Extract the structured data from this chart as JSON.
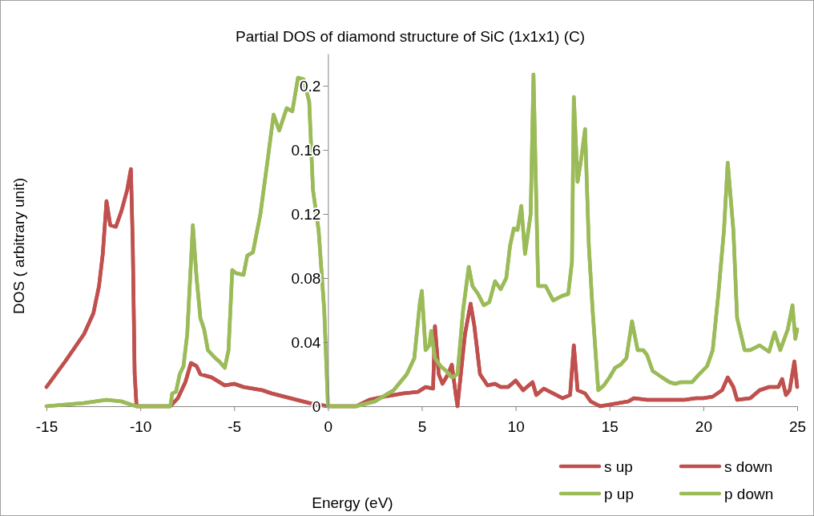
{
  "chart_data": {
    "type": "line",
    "title": "Partial DOS of diamond structure of SiC (1x1x1) (C)",
    "xlabel": "Energy (eV)",
    "ylabel": "DOS ( arbitrary unit)",
    "xlim": [
      -15,
      25
    ],
    "xticks": [
      -15,
      -10,
      -5,
      0,
      5,
      10,
      15,
      20,
      25
    ],
    "ylim": [
      0,
      0.22
    ],
    "yticks": [
      0,
      0.04,
      0.08,
      0.12,
      0.16,
      0.2
    ],
    "grid": false,
    "legend": "bottom right",
    "marker": "none",
    "line_style": "solid",
    "series": [
      {
        "name": "s up",
        "color": "#c0504d",
        "x": [
          -15,
          -14,
          -13,
          -12.5,
          -12.2,
          -12,
          -11.8,
          -11.6,
          -11.3,
          -11,
          -10.7,
          -10.5,
          -10.4,
          -10.3,
          -10.2,
          -8.4,
          -8,
          -7.6,
          -7.3,
          -7,
          -6.8,
          -6.2,
          -5.5,
          -5,
          -4.5,
          -4,
          -3.5,
          -3,
          -2,
          -1,
          0,
          1.5,
          2.2,
          3,
          4,
          4.8,
          5.2,
          5.6,
          5.7,
          5.9,
          6.1,
          6.4,
          6.6,
          6.8,
          6.9,
          7.3,
          7.6,
          7.8,
          8.1,
          8.5,
          8.9,
          9.2,
          9.6,
          10,
          10.4,
          10.9,
          11.1,
          11.5,
          12,
          12.5,
          12.9,
          13.1,
          13.3,
          13.7,
          14,
          14.5,
          15,
          16,
          16.3,
          17,
          18,
          19,
          19.6,
          20,
          20.5,
          21,
          21.3,
          21.6,
          21.8,
          22.5,
          23,
          23.5,
          24,
          24.2,
          24.4,
          24.6,
          24.85,
          25
        ],
        "values": [
          0.012,
          0.028,
          0.045,
          0.058,
          0.075,
          0.095,
          0.128,
          0.113,
          0.112,
          0.122,
          0.135,
          0.148,
          0.1,
          0.02,
          0,
          0,
          0.005,
          0.015,
          0.027,
          0.025,
          0.02,
          0.018,
          0.013,
          0.014,
          0.012,
          0.011,
          0.01,
          0.008,
          0.005,
          0.002,
          0,
          0,
          0.004,
          0.006,
          0.008,
          0.009,
          0.012,
          0.011,
          0.05,
          0.02,
          0.014,
          0.02,
          0.026,
          0.008,
          0,
          0.045,
          0.064,
          0.05,
          0.02,
          0.013,
          0.014,
          0.012,
          0.012,
          0.016,
          0.01,
          0.015,
          0.007,
          0.011,
          0.008,
          0.005,
          0.007,
          0.038,
          0.01,
          0.008,
          0.003,
          0,
          0.001,
          0.003,
          0.005,
          0.004,
          0.004,
          0.004,
          0.005,
          0.005,
          0.006,
          0.01,
          0.018,
          0.012,
          0.004,
          0.005,
          0.01,
          0.012,
          0.012,
          0.017,
          0.007,
          0.01,
          0.028,
          0.012
        ]
      },
      {
        "name": "s down",
        "color": "#c0504d",
        "x": [
          -15,
          -14,
          -13,
          -12.5,
          -12.2,
          -12,
          -11.8,
          -11.6,
          -11.3,
          -11,
          -10.7,
          -10.5,
          -10.4,
          -10.3,
          -10.2,
          -8.4,
          -8,
          -7.6,
          -7.3,
          -7,
          -6.8,
          -6.2,
          -5.5,
          -5,
          -4.5,
          -4,
          -3.5,
          -3,
          -2,
          -1,
          0,
          1.5,
          2.2,
          3,
          4,
          4.8,
          5.2,
          5.6,
          5.7,
          5.9,
          6.1,
          6.4,
          6.6,
          6.8,
          6.9,
          7.3,
          7.6,
          7.8,
          8.1,
          8.5,
          8.9,
          9.2,
          9.6,
          10,
          10.4,
          10.9,
          11.1,
          11.5,
          12,
          12.5,
          12.9,
          13.1,
          13.3,
          13.7,
          14,
          14.5,
          15,
          16,
          16.3,
          17,
          18,
          19,
          19.6,
          20,
          20.5,
          21,
          21.3,
          21.6,
          21.8,
          22.5,
          23,
          23.5,
          24,
          24.2,
          24.4,
          24.6,
          24.85,
          25
        ],
        "values": [
          0.012,
          0.028,
          0.045,
          0.058,
          0.075,
          0.095,
          0.128,
          0.113,
          0.112,
          0.122,
          0.135,
          0.148,
          0.1,
          0.02,
          0,
          0,
          0.005,
          0.015,
          0.027,
          0.025,
          0.02,
          0.018,
          0.013,
          0.014,
          0.012,
          0.011,
          0.01,
          0.008,
          0.005,
          0.002,
          0,
          0,
          0.004,
          0.006,
          0.008,
          0.009,
          0.012,
          0.011,
          0.05,
          0.02,
          0.014,
          0.02,
          0.026,
          0.008,
          0,
          0.045,
          0.064,
          0.05,
          0.02,
          0.013,
          0.014,
          0.012,
          0.012,
          0.016,
          0.01,
          0.015,
          0.007,
          0.011,
          0.008,
          0.005,
          0.007,
          0.038,
          0.01,
          0.008,
          0.003,
          0,
          0.001,
          0.003,
          0.005,
          0.004,
          0.004,
          0.004,
          0.005,
          0.005,
          0.006,
          0.01,
          0.018,
          0.012,
          0.004,
          0.005,
          0.01,
          0.012,
          0.012,
          0.017,
          0.007,
          0.01,
          0.028,
          0.012
        ]
      },
      {
        "name": "p up",
        "color": "#9bbb59",
        "x": [
          -15,
          -13,
          -11.8,
          -11,
          -10.5,
          -10.2,
          -8.4,
          -8.3,
          -8.1,
          -7.9,
          -7.7,
          -7.5,
          -7.3,
          -7.2,
          -7,
          -6.8,
          -6.6,
          -6.4,
          -6,
          -5.8,
          -5.5,
          -5.3,
          -5.1,
          -4.9,
          -4.5,
          -4.3,
          -4,
          -3.6,
          -3.2,
          -2.9,
          -2.6,
          -2.2,
          -1.9,
          -1.6,
          -1.3,
          -1,
          -0.8,
          -0.5,
          -0.2,
          0,
          1.5,
          2.5,
          3.5,
          4.2,
          4.6,
          4.9,
          5,
          5.2,
          5.4,
          5.5,
          5.7,
          6,
          6.3,
          6.6,
          6.9,
          7.2,
          7.5,
          7.7,
          8,
          8.3,
          8.6,
          8.9,
          9.2,
          9.5,
          9.7,
          9.9,
          10.1,
          10.3,
          10.5,
          10.8,
          10.95,
          11.2,
          11.6,
          12,
          12.5,
          12.8,
          13,
          13.1,
          13.3,
          13.5,
          13.7,
          13.9,
          14.1,
          14.4,
          14.7,
          15,
          15.3,
          15.6,
          15.9,
          16.2,
          16.5,
          16.8,
          17,
          17.3,
          17.8,
          18.2,
          18.5,
          18.8,
          19.4,
          19.7,
          20.2,
          20.5,
          20.8,
          21.1,
          21.3,
          21.6,
          21.8,
          22.2,
          22.5,
          23,
          23.5,
          23.8,
          24.1,
          24.5,
          24.75,
          24.9,
          25
        ],
        "values": [
          0,
          0.002,
          0.004,
          0.003,
          0.001,
          0,
          0,
          0.008,
          0.009,
          0.02,
          0.025,
          0.045,
          0.09,
          0.113,
          0.08,
          0.055,
          0.048,
          0.035,
          0.03,
          0.028,
          0.024,
          0.035,
          0.085,
          0.083,
          0.082,
          0.094,
          0.096,
          0.12,
          0.155,
          0.182,
          0.172,
          0.186,
          0.184,
          0.205,
          0.204,
          0.19,
          0.135,
          0.11,
          0.06,
          0,
          0,
          0.003,
          0.01,
          0.02,
          0.03,
          0.065,
          0.072,
          0.035,
          0.038,
          0.047,
          0.03,
          0.025,
          0.022,
          0.018,
          0.02,
          0.06,
          0.087,
          0.075,
          0.07,
          0.063,
          0.065,
          0.078,
          0.073,
          0.08,
          0.1,
          0.111,
          0.11,
          0.125,
          0.095,
          0.12,
          0.207,
          0.075,
          0.075,
          0.066,
          0.069,
          0.07,
          0.09,
          0.193,
          0.14,
          0.155,
          0.173,
          0.1,
          0.06,
          0.01,
          0.013,
          0.018,
          0.024,
          0.026,
          0.03,
          0.053,
          0.035,
          0.035,
          0.032,
          0.022,
          0.018,
          0.015,
          0.014,
          0.015,
          0.015,
          0.019,
          0.025,
          0.035,
          0.07,
          0.11,
          0.152,
          0.11,
          0.055,
          0.035,
          0.035,
          0.038,
          0.034,
          0.046,
          0.035,
          0.048,
          0.063,
          0.042,
          0.048
        ]
      },
      {
        "name": "p down",
        "color": "#9bbb59",
        "x": [
          -15,
          -13,
          -11.8,
          -11,
          -10.5,
          -10.2,
          -8.4,
          -8.3,
          -8.1,
          -7.9,
          -7.7,
          -7.5,
          -7.3,
          -7.2,
          -7,
          -6.8,
          -6.6,
          -6.4,
          -6,
          -5.8,
          -5.5,
          -5.3,
          -5.1,
          -4.9,
          -4.5,
          -4.3,
          -4,
          -3.6,
          -3.2,
          -2.9,
          -2.6,
          -2.2,
          -1.9,
          -1.6,
          -1.3,
          -1,
          -0.8,
          -0.5,
          -0.2,
          0,
          1.5,
          2.5,
          3.5,
          4.2,
          4.6,
          4.9,
          5,
          5.2,
          5.4,
          5.5,
          5.7,
          6,
          6.3,
          6.6,
          6.9,
          7.2,
          7.5,
          7.7,
          8,
          8.3,
          8.6,
          8.9,
          9.2,
          9.5,
          9.7,
          9.9,
          10.1,
          10.3,
          10.5,
          10.8,
          10.95,
          11.2,
          11.6,
          12,
          12.5,
          12.8,
          13,
          13.1,
          13.3,
          13.5,
          13.7,
          13.9,
          14.1,
          14.4,
          14.7,
          15,
          15.3,
          15.6,
          15.9,
          16.2,
          16.5,
          16.8,
          17,
          17.3,
          17.8,
          18.2,
          18.5,
          18.8,
          19.4,
          19.7,
          20.2,
          20.5,
          20.8,
          21.1,
          21.3,
          21.6,
          21.8,
          22.2,
          22.5,
          23,
          23.5,
          23.8,
          24.1,
          24.5,
          24.75,
          24.9,
          25
        ],
        "values": [
          0,
          0.002,
          0.004,
          0.003,
          0.001,
          0,
          0,
          0.008,
          0.009,
          0.02,
          0.025,
          0.045,
          0.09,
          0.113,
          0.08,
          0.055,
          0.048,
          0.035,
          0.03,
          0.028,
          0.024,
          0.035,
          0.085,
          0.083,
          0.082,
          0.094,
          0.096,
          0.12,
          0.155,
          0.182,
          0.172,
          0.186,
          0.184,
          0.205,
          0.204,
          0.19,
          0.135,
          0.11,
          0.06,
          0,
          0,
          0.003,
          0.01,
          0.02,
          0.03,
          0.065,
          0.072,
          0.035,
          0.038,
          0.047,
          0.03,
          0.025,
          0.022,
          0.018,
          0.02,
          0.06,
          0.087,
          0.075,
          0.07,
          0.063,
          0.065,
          0.078,
          0.073,
          0.08,
          0.1,
          0.111,
          0.11,
          0.125,
          0.095,
          0.12,
          0.207,
          0.075,
          0.075,
          0.066,
          0.069,
          0.07,
          0.09,
          0.193,
          0.14,
          0.155,
          0.173,
          0.1,
          0.06,
          0.01,
          0.013,
          0.018,
          0.024,
          0.026,
          0.03,
          0.053,
          0.035,
          0.035,
          0.032,
          0.022,
          0.018,
          0.015,
          0.014,
          0.015,
          0.015,
          0.019,
          0.025,
          0.035,
          0.07,
          0.11,
          0.152,
          0.11,
          0.055,
          0.035,
          0.035,
          0.038,
          0.034,
          0.046,
          0.035,
          0.048,
          0.063,
          0.042,
          0.048
        ]
      }
    ]
  }
}
